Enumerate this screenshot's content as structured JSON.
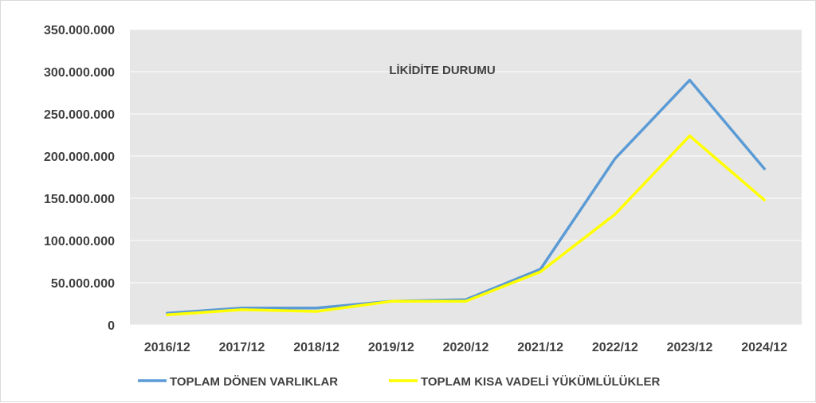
{
  "chart_data": {
    "type": "line",
    "title": "LİKİDİTE DURUMU",
    "categories": [
      "2016/12",
      "2017/12",
      "2018/12",
      "2019/12",
      "2020/12",
      "2021/12",
      "2022/12",
      "2023/12",
      "2024/12"
    ],
    "y_ticks": [
      "0",
      "50.000.000",
      "100.000.000",
      "150.000.000",
      "200.000.000",
      "250.000.000",
      "300.000.000",
      "350.000.000"
    ],
    "ylim": [
      0,
      350000000
    ],
    "grid": true,
    "legend_position": "bottom",
    "series": [
      {
        "name": "TOPLAM DÖNEN VARLIKLAR",
        "color": "#5b9bd5",
        "values": [
          14000000,
          20000000,
          20000000,
          28000000,
          30000000,
          66000000,
          197000000,
          290000000,
          185000000
        ]
      },
      {
        "name": "TOPLAM KISA VADELİ YÜKÜMLÜLÜKLER",
        "color": "#ffff00",
        "values": [
          12000000,
          18000000,
          16000000,
          28000000,
          28000000,
          63000000,
          131000000,
          224000000,
          148000000
        ]
      }
    ],
    "plot_background": "#e7e6e6",
    "grid_color": "#ffffff"
  }
}
